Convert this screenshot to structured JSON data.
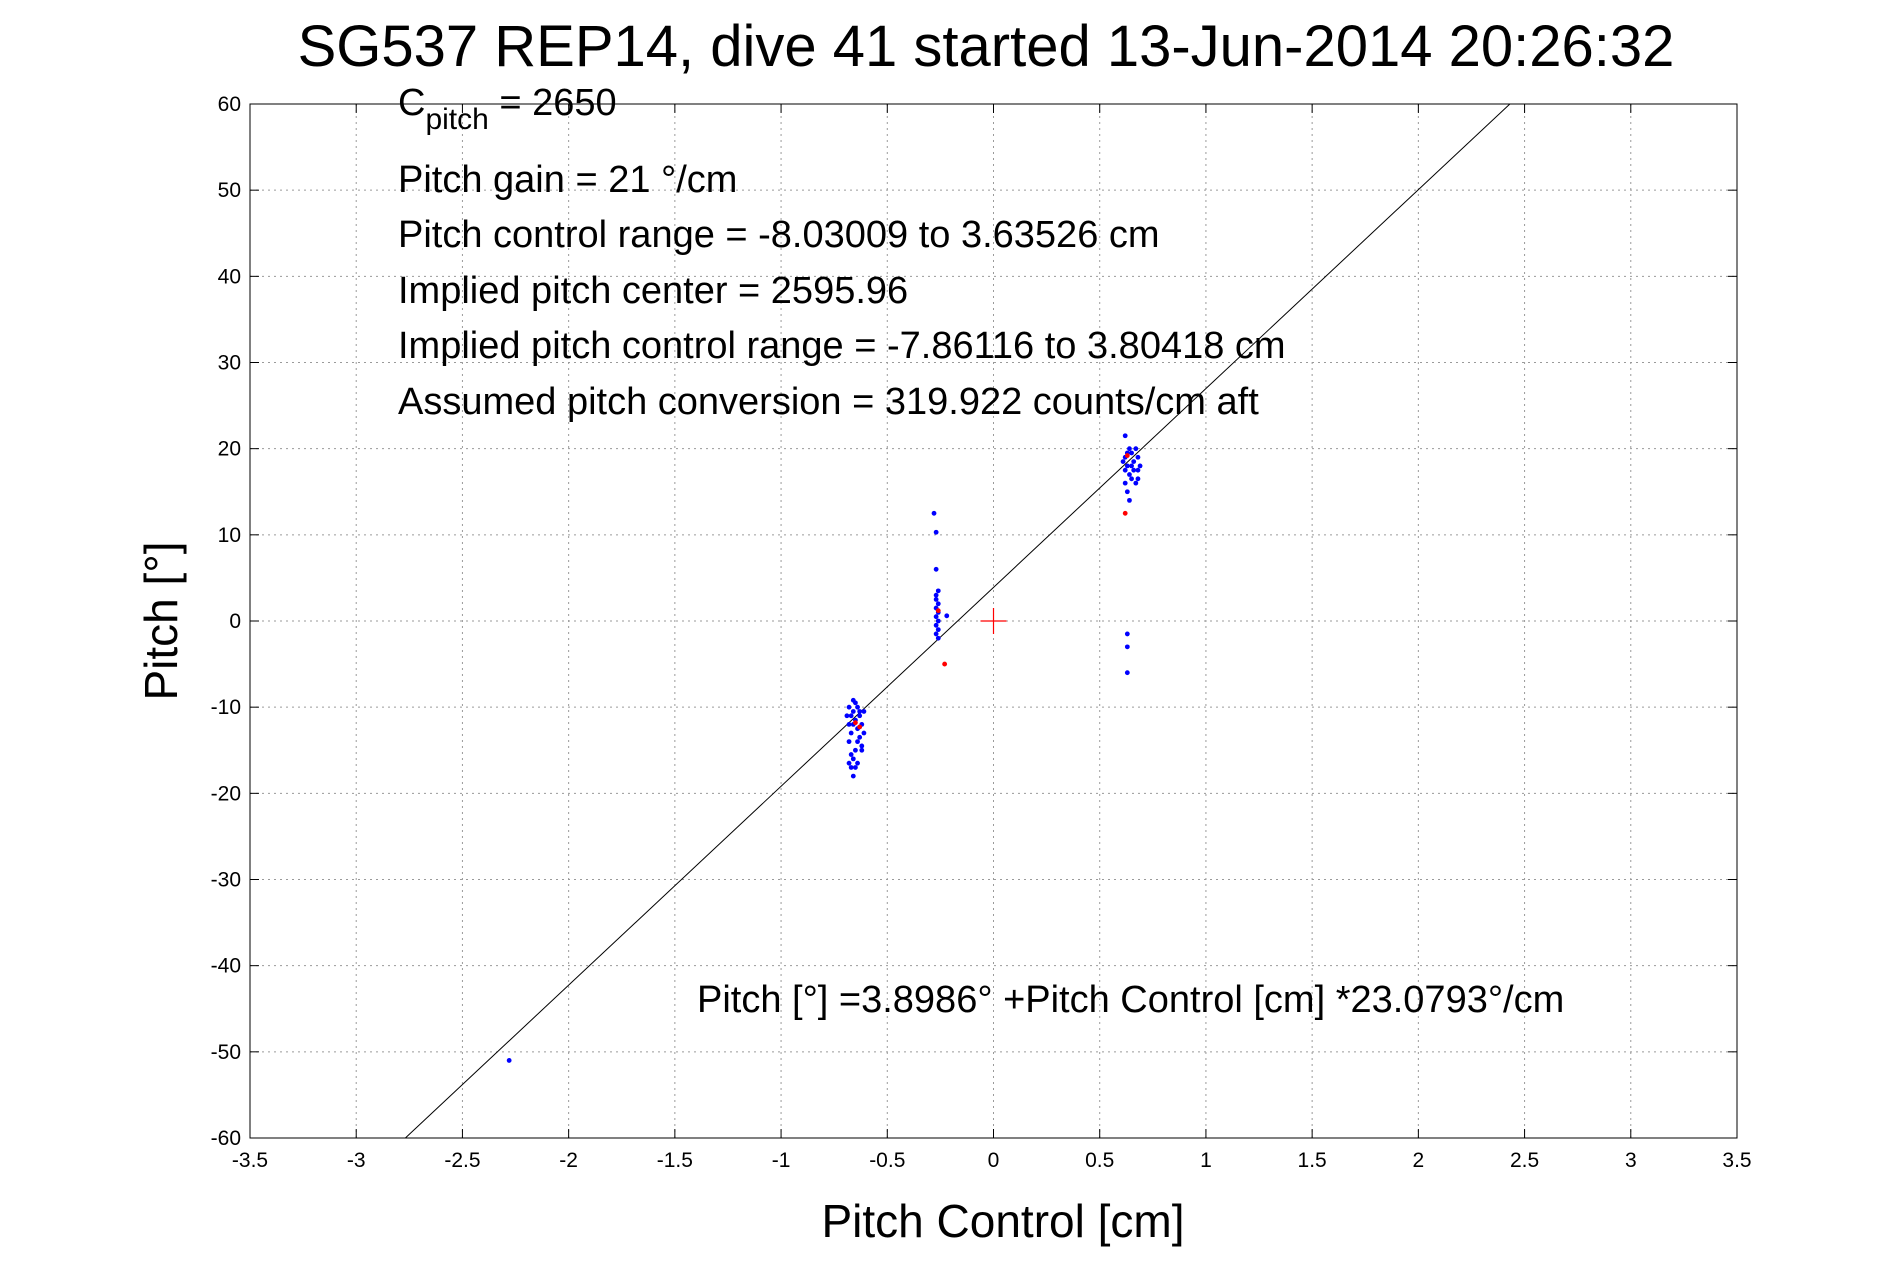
{
  "chart_data": {
    "type": "scatter",
    "title": "SG537 REP14, dive 41 started 13-Jun-2014 20:26:32",
    "xlabel": "Pitch Control [cm]",
    "ylabel": "Pitch [°]",
    "xlim": [
      -3.5,
      3.5
    ],
    "ylim": [
      -60,
      60
    ],
    "xticks": [
      -3.5,
      -3,
      -2.5,
      -2,
      -1.5,
      -1,
      -0.5,
      0,
      0.5,
      1,
      1.5,
      2,
      2.5,
      3,
      3.5
    ],
    "xtick_labels": [
      "-3.5",
      "-3",
      "-2.5",
      "-2",
      "-1.5",
      "-1",
      "-0.5",
      "0",
      "0.5",
      "1",
      "1.5",
      "2",
      "2.5",
      "3",
      "3.5"
    ],
    "yticks": [
      -60,
      -50,
      -40,
      -30,
      -20,
      -10,
      0,
      10,
      20,
      30,
      40,
      50,
      60
    ],
    "ytick_labels": [
      "-60",
      "-50",
      "-40",
      "-30",
      "-20",
      "-10",
      "0",
      "10",
      "20",
      "30",
      "40",
      "50",
      "60"
    ],
    "grid": true,
    "annotations": {
      "c_pitch_base": "C",
      "c_pitch_sub": "pitch",
      "c_pitch_value": " = 2650",
      "line2": "Pitch gain = 21 °/cm",
      "line3": "Pitch control range = -8.03009 to 3.63526 cm",
      "line4": "Implied pitch center = 2595.96",
      "line5": "Implied pitch control range = -7.86116 to 3.80418 cm",
      "line6": "Assumed pitch conversion = 319.922 counts/cm aft",
      "fit_equation": "Pitch [°] =3.8986° +Pitch Control [cm] *23.0793°/cm"
    },
    "fit_line": {
      "intercept": 3.8986,
      "slope": 23.0793,
      "color": "#000000"
    },
    "center_marker": {
      "x": 0,
      "y": 0,
      "color": "#ff0000"
    },
    "series": [
      {
        "color": "#0000ff",
        "points": [
          [
            -2.28,
            -51
          ],
          [
            -0.68,
            -10
          ],
          [
            -0.67,
            -11
          ],
          [
            -0.66,
            -10.5
          ],
          [
            -0.65,
            -9.5
          ],
          [
            -0.64,
            -10
          ],
          [
            -0.63,
            -11
          ],
          [
            -0.68,
            -12
          ],
          [
            -0.67,
            -13
          ],
          [
            -0.66,
            -12
          ],
          [
            -0.65,
            -11.5
          ],
          [
            -0.64,
            -12.5
          ],
          [
            -0.63,
            -10.5
          ],
          [
            -0.68,
            -14
          ],
          [
            -0.67,
            -15.5
          ],
          [
            -0.66,
            -16
          ],
          [
            -0.65,
            -17
          ],
          [
            -0.64,
            -14
          ],
          [
            -0.62,
            -15
          ],
          [
            -0.67,
            -17
          ],
          [
            -0.66,
            -18
          ],
          [
            -0.68,
            -16.5
          ],
          [
            -0.65,
            -15
          ],
          [
            -0.63,
            -13.5
          ],
          [
            -0.62,
            -14.5
          ],
          [
            -0.69,
            -11
          ],
          [
            -0.61,
            -10.5
          ],
          [
            -0.62,
            -12
          ],
          [
            -0.66,
            -9.2
          ],
          [
            -0.64,
            -16.5
          ],
          [
            -0.61,
            -13
          ],
          [
            -0.28,
            12.5
          ],
          [
            -0.27,
            10.3
          ],
          [
            -0.27,
            6
          ],
          [
            -0.27,
            3
          ],
          [
            -0.26,
            2
          ],
          [
            -0.27,
            1.5
          ],
          [
            -0.26,
            1
          ],
          [
            -0.27,
            0.5
          ],
          [
            -0.26,
            0
          ],
          [
            -0.27,
            -0.5
          ],
          [
            -0.26,
            -1
          ],
          [
            -0.27,
            -1.5
          ],
          [
            -0.26,
            -2
          ],
          [
            -0.22,
            0.6
          ],
          [
            -0.27,
            2.5
          ],
          [
            -0.26,
            3.5
          ],
          [
            0.62,
            21.5
          ],
          [
            0.62,
            19
          ],
          [
            0.63,
            18
          ],
          [
            0.64,
            17
          ],
          [
            0.65,
            19.5
          ],
          [
            0.66,
            18.5
          ],
          [
            0.67,
            20
          ],
          [
            0.68,
            19
          ],
          [
            0.62,
            16
          ],
          [
            0.63,
            15
          ],
          [
            0.64,
            14
          ],
          [
            0.65,
            16.5
          ],
          [
            0.66,
            17.5
          ],
          [
            0.67,
            16
          ],
          [
            0.68,
            17.5
          ],
          [
            0.63,
            19.5
          ],
          [
            0.64,
            20
          ],
          [
            0.65,
            18
          ],
          [
            0.62,
            17.5
          ],
          [
            0.61,
            18.5
          ],
          [
            0.69,
            18
          ],
          [
            0.68,
            16.5
          ],
          [
            0.63,
            -1.5
          ],
          [
            0.63,
            -3
          ],
          [
            0.63,
            -6
          ]
        ]
      },
      {
        "color": "#ff0000",
        "points": [
          [
            0.62,
            12.5
          ],
          [
            -0.23,
            -5
          ],
          [
            -0.63,
            -12.3
          ],
          [
            -0.65,
            -11.8
          ],
          [
            0.63,
            19.2
          ],
          [
            -0.26,
            1.2
          ]
        ]
      }
    ]
  }
}
